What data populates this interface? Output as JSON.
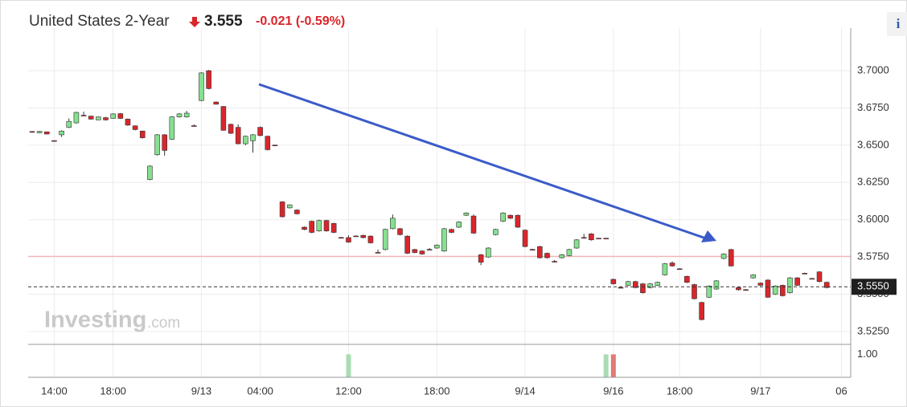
{
  "chart_data": {
    "type": "candlestick",
    "title": "United States 2-Year",
    "price": "3.555",
    "change": "-0.021 (-0.59%)",
    "info_icon": "i",
    "watermark": "Investing",
    "watermark_suffix": ".com",
    "up_color": "#86e08f",
    "down_color": "#d9262b",
    "volume_up_color": "#a9dcb3",
    "volume_down_color": "#e07a74",
    "categories": [
      null,
      null,
      null,
      "14:00",
      null,
      null,
      null,
      null,
      null,
      null,
      null,
      "18:00",
      null,
      null,
      null,
      null,
      null,
      null,
      null,
      null,
      null,
      null,
      null,
      "9/13",
      null,
      null,
      null,
      null,
      null,
      null,
      null,
      "04:00",
      null,
      null,
      null,
      null,
      null,
      null,
      null,
      null,
      null,
      null,
      null,
      "12:00",
      null,
      null,
      null,
      null,
      null,
      null,
      null,
      null,
      null,
      null,
      null,
      "18:00",
      null,
      null,
      null,
      null,
      null,
      null,
      null,
      null,
      null,
      null,
      null,
      "9/14",
      null,
      null,
      null,
      null,
      null,
      null,
      null,
      null,
      null,
      null,
      null,
      "9/16",
      null,
      null,
      null,
      null,
      null,
      null,
      null,
      null,
      "18:00",
      null,
      null,
      null,
      null,
      null,
      null,
      null,
      null,
      null,
      null,
      "9/17",
      null,
      null,
      null,
      null,
      null,
      null,
      null,
      null,
      null,
      null,
      "06"
    ],
    "open": [
      3.6592,
      3.6583,
      3.659,
      3.6531,
      3.657,
      3.662,
      3.665,
      3.6701,
      3.6695,
      3.667,
      3.6685,
      3.668,
      3.6712,
      3.6675,
      3.663,
      3.6595,
      3.627,
      3.6436,
      3.657,
      3.654,
      3.669,
      3.669,
      3.6631,
      3.68,
      3.7,
      3.679,
      3.676,
      3.664,
      3.662,
      3.651,
      3.653,
      3.662,
      3.656,
      3.6501,
      3.612,
      3.608,
      3.6065,
      3.595,
      3.599,
      3.5925,
      3.5995,
      3.5975,
      3.5881,
      3.588,
      3.5891,
      3.5895,
      3.589,
      3.5781,
      3.58,
      3.594,
      3.594,
      3.589,
      3.58,
      3.579,
      3.5801,
      3.581,
      3.579,
      3.5935,
      3.595,
      3.603,
      3.6025,
      3.5765,
      3.575,
      3.59,
      3.599,
      3.603,
      3.603,
      3.593,
      3.5801,
      3.582,
      3.5775,
      3.5721,
      3.5745,
      3.576,
      3.581,
      3.5881,
      3.5905,
      3.5876,
      3.5876,
      3.56,
      3.5546,
      3.556,
      3.5585,
      3.557,
      3.5545,
      3.556,
      3.563,
      3.571,
      3.5671,
      3.562,
      3.5565,
      3.5445,
      3.548,
      3.5535,
      3.574,
      3.58,
      3.5545,
      3.5531,
      3.561,
      3.5575,
      3.5595,
      3.55,
      3.556,
      3.551,
      3.561,
      3.5641,
      3.5606,
      3.565,
      3.558,
      null,
      null
    ],
    "high": [
      3.6596,
      3.6596,
      3.6592,
      3.6533,
      3.66,
      3.668,
      3.6725,
      3.6725,
      3.6698,
      3.6693,
      3.669,
      3.6715,
      3.6716,
      3.668,
      3.6633,
      3.6598,
      3.6365,
      3.6575,
      3.6575,
      3.6695,
      3.6715,
      3.673,
      3.664,
      3.699,
      3.7005,
      3.6793,
      3.6763,
      3.6645,
      3.664,
      3.6565,
      3.6575,
      3.6625,
      3.6565,
      3.6503,
      3.6125,
      3.6103,
      3.607,
      3.5955,
      3.5995,
      3.6,
      3.6,
      3.598,
      3.5885,
      3.5895,
      3.5895,
      3.59,
      3.5895,
      3.58,
      3.594,
      3.6035,
      3.5945,
      3.5895,
      3.5805,
      3.5795,
      3.581,
      3.5835,
      3.5945,
      3.594,
      3.599,
      3.605,
      3.6035,
      3.577,
      3.5815,
      3.594,
      3.605,
      3.6035,
      3.6035,
      3.5935,
      3.5805,
      3.5825,
      3.578,
      3.573,
      3.577,
      3.5805,
      3.587,
      3.5905,
      3.591,
      3.5878,
      3.5878,
      3.5605,
      3.5548,
      3.559,
      3.559,
      3.5575,
      3.5575,
      3.5585,
      3.571,
      3.572,
      3.5675,
      3.5625,
      3.557,
      3.545,
      3.556,
      3.5595,
      3.5775,
      3.5805,
      3.555,
      3.5535,
      3.5635,
      3.558,
      3.56,
      3.556,
      3.5565,
      3.5615,
      3.5615,
      3.5645,
      3.561,
      3.5655,
      3.5585,
      null,
      null
    ],
    "low": [
      3.6584,
      3.658,
      3.6572,
      3.6528,
      3.6555,
      3.6615,
      3.6645,
      3.6698,
      3.6672,
      3.6668,
      3.6665,
      3.6678,
      3.6676,
      3.663,
      3.66,
      3.6545,
      3.6265,
      3.643,
      3.643,
      3.6535,
      3.6685,
      3.6685,
      3.6628,
      3.6795,
      3.6875,
      3.6773,
      3.6598,
      3.6575,
      3.6505,
      3.65,
      3.645,
      3.656,
      3.6465,
      3.6498,
      3.6015,
      3.6075,
      3.6035,
      3.593,
      3.591,
      3.592,
      3.592,
      3.591,
      3.5878,
      3.5845,
      3.5888,
      3.5875,
      3.584,
      3.5778,
      3.5795,
      3.5935,
      3.5895,
      3.577,
      3.5775,
      3.5765,
      3.5798,
      3.5805,
      3.5785,
      3.591,
      3.5945,
      3.6025,
      3.5905,
      3.5695,
      3.5745,
      3.5895,
      3.5985,
      3.6005,
      3.5945,
      3.5815,
      3.5798,
      3.574,
      3.574,
      3.5715,
      3.574,
      3.5755,
      3.5805,
      3.5878,
      3.586,
      3.5873,
      3.5873,
      3.5565,
      3.554,
      3.5555,
      3.554,
      3.5505,
      3.554,
      3.5555,
      3.5625,
      3.5685,
      3.5665,
      3.5575,
      3.5465,
      3.5325,
      3.5475,
      3.553,
      3.5735,
      3.5685,
      3.5525,
      3.5525,
      3.5605,
      3.5555,
      3.5475,
      3.5495,
      3.5485,
      3.5505,
      3.5555,
      3.5638,
      3.56,
      3.558,
      3.554,
      null,
      null
    ],
    "close": [
      3.6588,
      3.6593,
      3.6575,
      3.653,
      3.6595,
      3.666,
      3.672,
      3.67,
      3.6675,
      3.669,
      3.667,
      3.671,
      3.668,
      3.6635,
      3.6605,
      3.655,
      3.636,
      3.657,
      3.6465,
      3.669,
      3.671,
      3.6715,
      3.663,
      3.6985,
      3.688,
      3.6775,
      3.66,
      3.658,
      3.651,
      3.656,
      3.657,
      3.6565,
      3.647,
      3.65,
      3.602,
      3.61,
      3.604,
      3.5935,
      3.5915,
      3.5995,
      3.5925,
      3.5915,
      3.588,
      3.585,
      3.589,
      3.588,
      3.5845,
      3.578,
      3.5935,
      3.601,
      3.59,
      3.5775,
      3.578,
      3.577,
      3.58,
      3.583,
      3.594,
      3.5915,
      3.5985,
      3.6045,
      3.591,
      3.5715,
      3.581,
      3.5935,
      3.6045,
      3.601,
      3.595,
      3.582,
      3.58,
      3.5745,
      3.5745,
      3.572,
      3.5765,
      3.58,
      3.5865,
      3.588,
      3.5865,
      3.5875,
      3.5875,
      3.557,
      3.5545,
      3.5585,
      3.5545,
      3.551,
      3.557,
      3.558,
      3.5705,
      3.569,
      3.567,
      3.558,
      3.547,
      3.533,
      3.5555,
      3.559,
      3.577,
      3.569,
      3.553,
      3.553,
      3.563,
      3.556,
      3.548,
      3.5555,
      3.549,
      3.561,
      3.556,
      3.564,
      3.5605,
      3.5585,
      3.5545,
      null,
      null
    ],
    "volume": [
      null,
      null,
      null,
      null,
      null,
      null,
      null,
      null,
      null,
      null,
      null,
      null,
      null,
      null,
      null,
      null,
      null,
      null,
      null,
      null,
      null,
      null,
      null,
      null,
      null,
      null,
      null,
      null,
      null,
      null,
      null,
      null,
      null,
      null,
      null,
      null,
      null,
      null,
      null,
      null,
      null,
      null,
      null,
      1,
      null,
      null,
      null,
      null,
      null,
      null,
      null,
      null,
      null,
      null,
      null,
      null,
      null,
      null,
      null,
      null,
      null,
      null,
      null,
      null,
      null,
      null,
      null,
      null,
      null,
      null,
      null,
      null,
      null,
      null,
      null,
      null,
      null,
      null,
      1,
      1,
      null,
      null,
      null,
      null,
      null,
      null,
      null,
      null,
      null,
      null,
      null,
      null,
      null,
      null,
      null,
      null,
      null,
      null,
      null,
      null,
      null,
      null,
      null,
      null,
      null,
      null,
      null,
      null,
      null,
      null,
      null
    ],
    "volume_up": [
      null,
      null,
      null,
      null,
      null,
      null,
      null,
      null,
      null,
      null,
      null,
      null,
      null,
      null,
      null,
      null,
      null,
      null,
      null,
      null,
      null,
      null,
      null,
      null,
      null,
      null,
      null,
      null,
      null,
      null,
      null,
      null,
      null,
      null,
      null,
      null,
      null,
      null,
      null,
      null,
      null,
      null,
      null,
      true,
      null,
      null,
      null,
      null,
      null,
      null,
      null,
      null,
      null,
      null,
      null,
      null,
      null,
      null,
      null,
      null,
      null,
      null,
      null,
      null,
      null,
      null,
      null,
      null,
      null,
      null,
      null,
      null,
      null,
      null,
      null,
      null,
      null,
      null,
      true,
      false,
      null,
      null,
      null,
      null,
      null,
      null,
      null,
      null,
      null,
      null,
      null,
      null,
      null,
      null,
      null,
      null,
      null,
      null,
      null,
      null,
      null,
      null,
      null,
      null,
      null,
      null,
      null,
      null,
      null,
      null,
      null
    ],
    "ylim": [
      3.5169,
      3.7232
    ],
    "yticks": [
      {
        "value": 3.7,
        "label": "3.7000"
      },
      {
        "value": 3.675,
        "label": "3.6750"
      },
      {
        "value": 3.65,
        "label": "3.6500"
      },
      {
        "value": 3.625,
        "label": "3.6250"
      },
      {
        "value": 3.6,
        "label": "3.6000"
      },
      {
        "value": 3.575,
        "label": "3.5750"
      },
      {
        "value": 3.55,
        "label": "3.5500"
      },
      {
        "value": 3.525,
        "label": "3.5250"
      }
    ],
    "volume_ylim": [
      0,
      1.4
    ],
    "volume_yticks": [
      {
        "value": 1,
        "label": "1.00"
      }
    ],
    "last_price": {
      "value": 3.555,
      "label": "3.5550"
    },
    "reference_line": 3.5755,
    "grid": true
  }
}
